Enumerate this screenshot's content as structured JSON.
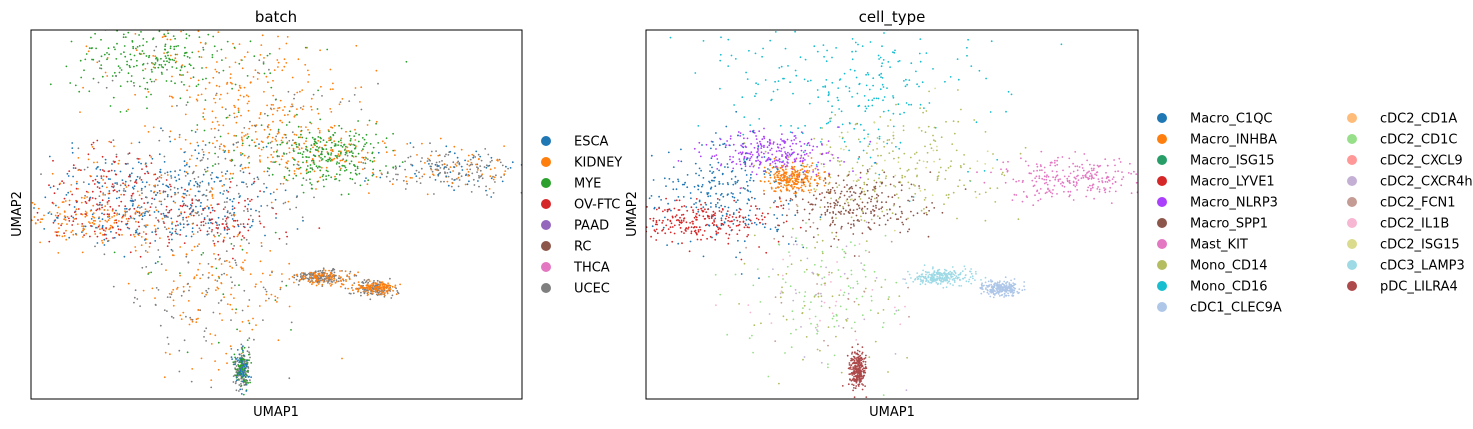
{
  "chart_data": [
    {
      "type": "scatter",
      "title": "batch",
      "xlabel": "UMAP1",
      "ylabel": "UMAP2",
      "xticks": [],
      "yticks": [],
      "legend_position": "right",
      "legend": [
        "ESCA",
        "KIDNEY",
        "MYE",
        "OV-FTC",
        "PAAD",
        "RC",
        "THCA",
        "UCEC"
      ],
      "colors": {
        "ESCA": "#1f77b4",
        "KIDNEY": "#ff7f0e",
        "MYE": "#2ca02c",
        "OV-FTC": "#d62728",
        "PAAD": "#9467bd",
        "RC": "#8c564b",
        "THCA": "#e377c2",
        "UCEC": "#7f7f7f"
      },
      "clusters": [
        {
          "x": 0.24,
          "y": 0.92,
          "spread": [
            0.08,
            0.05
          ],
          "series": {
            "MYE": 0.85,
            "KIDNEY": 0.1,
            "UCEC": 0.05
          }
        },
        {
          "x": 0.46,
          "y": 0.83,
          "spread": [
            0.12,
            0.09
          ],
          "series": {
            "KIDNEY": 0.8,
            "UCEC": 0.12,
            "MYE": 0.08
          }
        },
        {
          "x": 0.52,
          "y": 0.68,
          "spread": [
            0.09,
            0.05
          ],
          "series": {
            "KIDNEY": 0.55,
            "MYE": 0.3,
            "UCEC": 0.15
          }
        },
        {
          "x": 0.33,
          "y": 0.58,
          "spread": [
            0.09,
            0.06
          ],
          "series": {
            "ESCA": 0.55,
            "UCEC": 0.3,
            "KIDNEY": 0.15
          }
        },
        {
          "x": 0.16,
          "y": 0.57,
          "spread": [
            0.07,
            0.06
          ],
          "series": {
            "OV-FTC": 0.45,
            "ESCA": 0.3,
            "KIDNEY": 0.15,
            "UCEC": 0.1
          }
        },
        {
          "x": 0.12,
          "y": 0.48,
          "spread": [
            0.08,
            0.03
          ],
          "series": {
            "KIDNEY": 0.6,
            "OV-FTC": 0.2,
            "ESCA": 0.2
          }
        },
        {
          "x": 0.36,
          "y": 0.49,
          "spread": [
            0.09,
            0.04
          ],
          "series": {
            "OV-FTC": 0.5,
            "ESCA": 0.25,
            "UCEC": 0.25
          }
        },
        {
          "x": 0.62,
          "y": 0.66,
          "spread": [
            0.05,
            0.04
          ],
          "series": {
            "MYE": 0.85,
            "KIDNEY": 0.15
          }
        },
        {
          "x": 0.37,
          "y": 0.3,
          "spread": [
            0.08,
            0.1
          ],
          "series": {
            "KIDNEY": 0.55,
            "UCEC": 0.35,
            "MYE": 0.1
          }
        },
        {
          "x": 0.86,
          "y": 0.62,
          "spread": [
            0.08,
            0.03
          ],
          "series": {
            "UCEC": 0.55,
            "KIDNEY": 0.25,
            "ESCA": 0.2
          }
        },
        {
          "x": 0.59,
          "y": 0.33,
          "spread": [
            0.03,
            0.01
          ],
          "series": {
            "UCEC": 0.6,
            "KIDNEY": 0.4
          }
        },
        {
          "x": 0.7,
          "y": 0.3,
          "spread": [
            0.02,
            0.01
          ],
          "series": {
            "UCEC": 0.5,
            "KIDNEY": 0.5
          }
        },
        {
          "x": 0.43,
          "y": 0.08,
          "spread": [
            0.008,
            0.025
          ],
          "series": {
            "UCEC": 0.5,
            "MYE": 0.3,
            "ESCA": 0.2
          }
        }
      ]
    },
    {
      "type": "scatter",
      "title": "cell_type",
      "xlabel": "UMAP1",
      "ylabel": "UMAP2",
      "xticks": [],
      "yticks": [],
      "legend_position": "right",
      "legend": [
        "Macro_C1QC",
        "Macro_INHBA",
        "Macro_ISG15",
        "Macro_LYVE1",
        "Macro_NLRP3",
        "Macro_SPP1",
        "Mast_KIT",
        "Mono_CD14",
        "Mono_CD16",
        "cDC1_CLEC9A",
        "cDC2_CD1A",
        "cDC2_CD1C",
        "cDC2_CXCL9",
        "cDC2_CXCR4hi",
        "cDC2_FCN1",
        "cDC2_IL1B",
        "cDC2_ISG15",
        "cDC3_LAMP3",
        "pDC_LILRA4"
      ],
      "colors": {
        "Macro_C1QC": "#1f77b4",
        "Macro_INHBA": "#ff7f0e",
        "Macro_ISG15": "#279e68",
        "Macro_LYVE1": "#d62728",
        "Macro_NLRP3": "#aa40fc",
        "Macro_SPP1": "#8c564b",
        "Mast_KIT": "#e377c2",
        "Mono_CD14": "#b5bd61",
        "Mono_CD16": "#17becf",
        "cDC1_CLEC9A": "#aec7e8",
        "cDC2_CD1A": "#ffbb78",
        "cDC2_CD1C": "#98df8a",
        "cDC2_CXCL9": "#ff9896",
        "cDC2_CXCR4hi": "#c5b0d5",
        "cDC2_FCN1": "#c49c94",
        "cDC2_IL1B": "#f7b6d2",
        "cDC2_ISG15": "#dbdb8d",
        "cDC3_LAMP3": "#9edae5",
        "pDC_LILRA4": "#ad494a"
      },
      "clusters": [
        {
          "x": 0.42,
          "y": 0.84,
          "spread": [
            0.14,
            0.1
          ],
          "series": {
            "Mono_CD16": 1.0
          }
        },
        {
          "x": 0.25,
          "y": 0.67,
          "spread": [
            0.07,
            0.03
          ],
          "series": {
            "Macro_NLRP3": 1.0
          }
        },
        {
          "x": 0.51,
          "y": 0.62,
          "spread": [
            0.11,
            0.08
          ],
          "series": {
            "Mono_CD14": 0.85,
            "cDC2_ISG15": 0.15
          }
        },
        {
          "x": 0.16,
          "y": 0.57,
          "spread": [
            0.08,
            0.07
          ],
          "series": {
            "Macro_C1QC": 1.0
          }
        },
        {
          "x": 0.12,
          "y": 0.48,
          "spread": [
            0.08,
            0.03
          ],
          "series": {
            "Macro_LYVE1": 1.0
          }
        },
        {
          "x": 0.3,
          "y": 0.6,
          "spread": [
            0.03,
            0.02
          ],
          "series": {
            "Macro_INHBA": 1.0
          }
        },
        {
          "x": 0.42,
          "y": 0.52,
          "spread": [
            0.07,
            0.04
          ],
          "series": {
            "Macro_SPP1": 1.0
          }
        },
        {
          "x": 0.37,
          "y": 0.3,
          "spread": [
            0.08,
            0.1
          ],
          "series": {
            "cDC2_CD1C": 0.4,
            "Mono_CD14": 0.25,
            "cDC2_CXCR4hi": 0.15,
            "cDC2_FCN1": 0.1,
            "cDC2_IL1B": 0.1
          }
        },
        {
          "x": 0.87,
          "y": 0.6,
          "spread": [
            0.08,
            0.03
          ],
          "series": {
            "Mast_KIT": 1.0
          }
        },
        {
          "x": 0.6,
          "y": 0.33,
          "spread": [
            0.03,
            0.01
          ],
          "series": {
            "cDC3_LAMP3": 1.0
          }
        },
        {
          "x": 0.72,
          "y": 0.3,
          "spread": [
            0.02,
            0.01
          ],
          "series": {
            "cDC1_CLEC9A": 1.0
          }
        },
        {
          "x": 0.43,
          "y": 0.08,
          "spread": [
            0.008,
            0.025
          ],
          "series": {
            "pDC_LILRA4": 1.0
          }
        }
      ]
    }
  ]
}
